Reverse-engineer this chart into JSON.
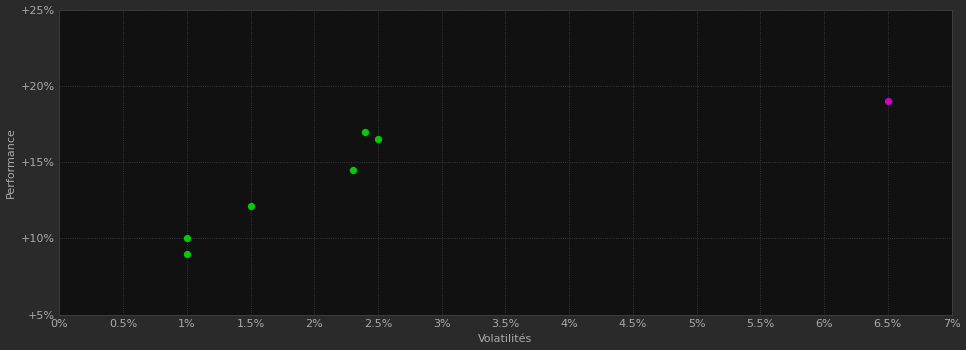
{
  "background_color": "#2a2a2a",
  "plot_bg_color": "#111111",
  "grid_color": "#444444",
  "xlabel": "Volatilités",
  "ylabel": "Performance",
  "xlim": [
    0,
    0.07
  ],
  "ylim": [
    0.05,
    0.25
  ],
  "xticks": [
    0.0,
    0.005,
    0.01,
    0.015,
    0.02,
    0.025,
    0.03,
    0.035,
    0.04,
    0.045,
    0.05,
    0.055,
    0.06,
    0.065,
    0.07
  ],
  "yticks": [
    0.05,
    0.1,
    0.15,
    0.2,
    0.25
  ],
  "green_points": [
    [
      0.01,
      0.1
    ],
    [
      0.01,
      0.09
    ],
    [
      0.015,
      0.121
    ],
    [
      0.023,
      0.145
    ],
    [
      0.024,
      0.17
    ],
    [
      0.025,
      0.165
    ]
  ],
  "magenta_points": [
    [
      0.065,
      0.19
    ]
  ],
  "green_color": "#00cc00",
  "magenta_color": "#cc00cc",
  "dot_size": 18,
  "font_color": "#aaaaaa",
  "font_size": 8,
  "label_font_size": 8
}
